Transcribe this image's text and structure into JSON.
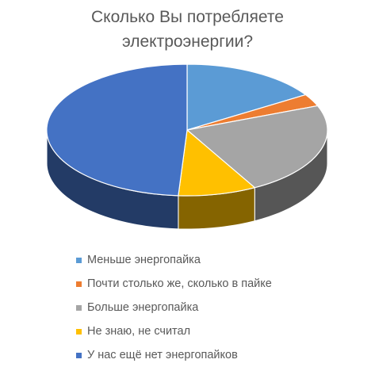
{
  "chart_data": {
    "type": "pie",
    "title": "Сколько Вы потребляете\nэлектроэнергии?",
    "categories": [
      "Меньше энергопайка",
      "Почти столько же, сколько в пайке",
      "Больше энергопайка",
      "Не знаю, не считал",
      "У нас ещё нет энергопайков"
    ],
    "values": [
      16,
      3,
      23,
      9,
      49
    ],
    "colors": [
      "#5b9bd5",
      "#ed7d31",
      "#a5a5a5",
      "#ffc000",
      "#4472c4"
    ],
    "legend_position": "bottom"
  }
}
